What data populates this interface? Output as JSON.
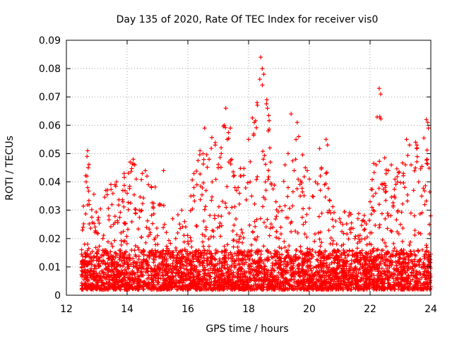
{
  "chart_data": {
    "type": "scatter",
    "title": "Day 135 of 2020, Rate Of TEC Index for receiver vis0",
    "xlabel": "GPS time / hours",
    "ylabel": "ROTI / TECUs",
    "xlim": [
      12,
      24
    ],
    "ylim": [
      0,
      0.09
    ],
    "xticks": [
      12,
      14,
      16,
      18,
      20,
      22,
      24
    ],
    "yticks": [
      0,
      0.01,
      0.02,
      0.03,
      0.04,
      0.05,
      0.06,
      0.07,
      0.08,
      0.09
    ],
    "xtick_labels": [
      "12",
      "14",
      "16",
      "18",
      "20",
      "22",
      "24"
    ],
    "ytick_labels": [
      "0",
      "0.01",
      "0.02",
      "0.03",
      "0.04",
      "0.05",
      "0.06",
      "0.07",
      "0.08",
      "0.09"
    ],
    "grid": true,
    "marker": "+",
    "color": "#ff0000",
    "series": [
      {
        "name": "vis0",
        "points": [
          [
            12.55,
            0.024
          ],
          [
            12.6,
            0.018
          ],
          [
            12.65,
            0.04
          ],
          [
            12.7,
            0.051
          ],
          [
            12.72,
            0.045
          ],
          [
            12.75,
            0.032
          ],
          [
            12.7,
            0.038
          ],
          [
            12.68,
            0.049
          ],
          [
            13.3,
            0.037
          ],
          [
            13.5,
            0.032
          ],
          [
            13.6,
            0.039
          ],
          [
            13.65,
            0.04
          ],
          [
            13.4,
            0.028
          ],
          [
            13.55,
            0.025
          ],
          [
            13.2,
            0.02
          ],
          [
            13.9,
            0.043
          ],
          [
            14.0,
            0.036
          ],
          [
            14.1,
            0.047
          ],
          [
            14.2,
            0.048
          ],
          [
            14.25,
            0.046
          ],
          [
            14.3,
            0.041
          ],
          [
            14.5,
            0.043
          ],
          [
            14.6,
            0.044
          ],
          [
            14.7,
            0.039
          ],
          [
            14.8,
            0.038
          ],
          [
            15.2,
            0.044
          ],
          [
            15.5,
            0.027
          ],
          [
            15.8,
            0.03
          ],
          [
            16.1,
            0.035
          ],
          [
            16.2,
            0.038
          ],
          [
            16.4,
            0.051
          ],
          [
            16.5,
            0.05
          ],
          [
            16.55,
            0.059
          ],
          [
            16.7,
            0.048
          ],
          [
            16.8,
            0.04
          ],
          [
            16.9,
            0.053
          ],
          [
            17.0,
            0.045
          ],
          [
            17.1,
            0.05
          ],
          [
            17.2,
            0.06
          ],
          [
            17.25,
            0.066
          ],
          [
            17.3,
            0.055
          ],
          [
            17.35,
            0.047
          ],
          [
            17.4,
            0.059
          ],
          [
            17.5,
            0.042
          ],
          [
            17.55,
            0.038
          ],
          [
            17.45,
            0.031
          ],
          [
            17.6,
            0.037
          ],
          [
            17.7,
            0.036
          ],
          [
            18.0,
            0.055
          ],
          [
            18.05,
            0.04
          ],
          [
            18.1,
            0.035
          ],
          [
            18.4,
            0.084
          ],
          [
            18.45,
            0.08
          ],
          [
            18.5,
            0.078
          ],
          [
            18.6,
            0.069
          ],
          [
            18.62,
            0.066
          ],
          [
            18.65,
            0.058
          ],
          [
            18.7,
            0.052
          ],
          [
            18.72,
            0.047
          ],
          [
            18.55,
            0.04
          ],
          [
            18.75,
            0.039
          ],
          [
            18.9,
            0.033
          ],
          [
            19.2,
            0.046
          ],
          [
            19.3,
            0.05
          ],
          [
            19.4,
            0.064
          ],
          [
            19.5,
            0.044
          ],
          [
            19.55,
            0.048
          ],
          [
            19.6,
            0.061
          ],
          [
            19.65,
            0.056
          ],
          [
            19.3,
            0.038
          ],
          [
            19.7,
            0.035
          ],
          [
            20.0,
            0.041
          ],
          [
            20.2,
            0.04
          ],
          [
            20.4,
            0.045
          ],
          [
            20.5,
            0.039
          ],
          [
            20.55,
            0.055
          ],
          [
            20.6,
            0.053
          ],
          [
            20.7,
            0.029
          ],
          [
            21.0,
            0.027
          ],
          [
            21.3,
            0.028
          ],
          [
            21.6,
            0.027
          ],
          [
            21.8,
            0.023
          ],
          [
            22.0,
            0.033
          ],
          [
            22.1,
            0.035
          ],
          [
            22.2,
            0.046
          ],
          [
            22.3,
            0.073
          ],
          [
            22.35,
            0.071
          ],
          [
            22.32,
            0.063
          ],
          [
            22.4,
            0.039
          ],
          [
            22.5,
            0.038
          ],
          [
            22.6,
            0.044
          ],
          [
            22.7,
            0.046
          ],
          [
            22.8,
            0.035
          ],
          [
            22.9,
            0.04
          ],
          [
            23.1,
            0.043
          ],
          [
            23.2,
            0.055
          ],
          [
            23.3,
            0.053
          ],
          [
            23.35,
            0.046
          ],
          [
            23.5,
            0.054
          ],
          [
            23.55,
            0.052
          ],
          [
            23.6,
            0.04
          ],
          [
            23.7,
            0.035
          ],
          [
            23.85,
            0.062
          ],
          [
            23.9,
            0.061
          ],
          [
            23.92,
            0.059
          ],
          [
            23.88,
            0.048
          ],
          [
            23.8,
            0.032
          ],
          [
            23.95,
            0.025
          ],
          [
            12.6,
            0.012
          ],
          [
            13.0,
            0.015
          ],
          [
            13.8,
            0.022
          ],
          [
            14.4,
            0.03
          ],
          [
            15.0,
            0.021
          ],
          [
            15.6,
            0.02
          ],
          [
            16.0,
            0.019
          ],
          [
            16.6,
            0.024
          ],
          [
            17.0,
            0.028
          ],
          [
            17.8,
            0.022
          ],
          [
            18.2,
            0.026
          ],
          [
            18.8,
            0.024
          ],
          [
            19.0,
            0.02
          ],
          [
            19.8,
            0.025
          ],
          [
            20.3,
            0.022
          ],
          [
            20.9,
            0.018
          ],
          [
            21.5,
            0.02
          ],
          [
            22.0,
            0.022
          ],
          [
            22.6,
            0.028
          ],
          [
            23.0,
            0.025
          ],
          [
            23.6,
            0.022
          ],
          [
            12.7,
            0.008
          ],
          [
            13.5,
            0.009
          ],
          [
            14.5,
            0.007
          ],
          [
            15.5,
            0.008
          ],
          [
            16.5,
            0.009
          ],
          [
            17.5,
            0.008
          ],
          [
            18.5,
            0.009
          ],
          [
            19.5,
            0.008
          ],
          [
            20.5,
            0.007
          ],
          [
            21.5,
            0.009
          ],
          [
            22.5,
            0.008
          ],
          [
            23.5,
            0.007
          ]
        ]
      }
    ],
    "density": {
      "note": "Dense cloud of measurements: baseline band ~0.003-0.015 across 12.5-24 h with spikes up to listed maxima",
      "x_range": [
        12.5,
        24
      ],
      "baseline_band": [
        0.002,
        0.016
      ],
      "upper_envelope": [
        [
          12.5,
          0.025
        ],
        [
          12.7,
          0.052
        ],
        [
          13.0,
          0.03
        ],
        [
          13.4,
          0.04
        ],
        [
          13.7,
          0.04
        ],
        [
          14.0,
          0.043
        ],
        [
          14.2,
          0.048
        ],
        [
          14.6,
          0.044
        ],
        [
          15.0,
          0.037
        ],
        [
          15.3,
          0.03
        ],
        [
          15.6,
          0.028
        ],
        [
          16.0,
          0.035
        ],
        [
          16.4,
          0.051
        ],
        [
          16.6,
          0.059
        ],
        [
          17.0,
          0.053
        ],
        [
          17.25,
          0.066
        ],
        [
          17.6,
          0.042
        ],
        [
          18.0,
          0.055
        ],
        [
          18.4,
          0.084
        ],
        [
          18.6,
          0.069
        ],
        [
          19.0,
          0.035
        ],
        [
          19.4,
          0.064
        ],
        [
          19.7,
          0.061
        ],
        [
          20.0,
          0.041
        ],
        [
          20.5,
          0.057
        ],
        [
          20.8,
          0.03
        ],
        [
          21.2,
          0.03
        ],
        [
          21.6,
          0.029
        ],
        [
          22.0,
          0.034
        ],
        [
          22.3,
          0.073
        ],
        [
          22.6,
          0.046
        ],
        [
          23.0,
          0.045
        ],
        [
          23.3,
          0.055
        ],
        [
          23.6,
          0.054
        ],
        [
          23.9,
          0.062
        ],
        [
          24.0,
          0.03
        ]
      ]
    }
  }
}
